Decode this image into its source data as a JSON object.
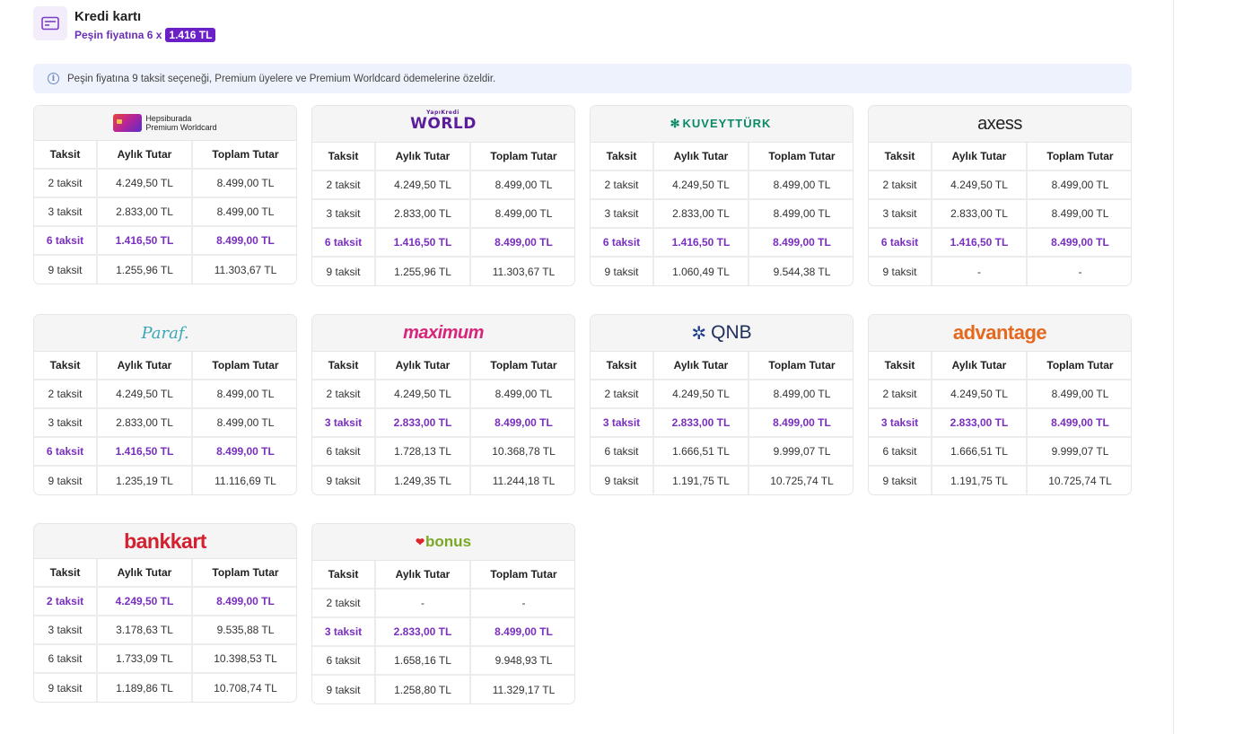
{
  "header": {
    "icon": "credit-card-icon",
    "title": "Kredi kartı",
    "subtitle_prefix": "Peşin fiyatına 6 x",
    "price": "1.416 TL"
  },
  "notice": {
    "icon": "info-icon",
    "text": "Peşin fiyatına 9 taksit seçeneği, Premium üyelere ve Premium Worldcard ödemelerine özeldir."
  },
  "columns": [
    "Taksit",
    "Aylık Tutar",
    "Toplam Tutar"
  ],
  "banks": [
    {
      "logo_line1": "Hepsiburada",
      "logo_line2": "Premium Worldcard",
      "rows": [
        {
          "t": "2 taksit",
          "m": "4.249,50 TL",
          "total": "8.499,00 TL",
          "hl": false
        },
        {
          "t": "3 taksit",
          "m": "2.833,00 TL",
          "total": "8.499,00 TL",
          "hl": false
        },
        {
          "t": "6 taksit",
          "m": "1.416,50 TL",
          "total": "8.499,00 TL",
          "hl": true
        },
        {
          "t": "9 taksit",
          "m": "1.255,96 TL",
          "total": "11.303,67 TL",
          "hl": false
        }
      ]
    },
    {
      "logo_top": "YapıKredi",
      "logo_text": "WORLD",
      "rows": [
        {
          "t": "2 taksit",
          "m": "4.249,50 TL",
          "total": "8.499,00 TL",
          "hl": false
        },
        {
          "t": "3 taksit",
          "m": "2.833,00 TL",
          "total": "8.499,00 TL",
          "hl": false
        },
        {
          "t": "6 taksit",
          "m": "1.416,50 TL",
          "total": "8.499,00 TL",
          "hl": true
        },
        {
          "t": "9 taksit",
          "m": "1.255,96 TL",
          "total": "11.303,67 TL",
          "hl": false
        }
      ]
    },
    {
      "logo_text": "KUVEYTTÜRK",
      "rows": [
        {
          "t": "2 taksit",
          "m": "4.249,50 TL",
          "total": "8.499,00 TL",
          "hl": false
        },
        {
          "t": "3 taksit",
          "m": "2.833,00 TL",
          "total": "8.499,00 TL",
          "hl": false
        },
        {
          "t": "6 taksit",
          "m": "1.416,50 TL",
          "total": "8.499,00 TL",
          "hl": true
        },
        {
          "t": "9 taksit",
          "m": "1.060,49 TL",
          "total": "9.544,38 TL",
          "hl": false
        }
      ]
    },
    {
      "logo_text": "axess",
      "rows": [
        {
          "t": "2 taksit",
          "m": "4.249,50 TL",
          "total": "8.499,00 TL",
          "hl": false
        },
        {
          "t": "3 taksit",
          "m": "2.833,00 TL",
          "total": "8.499,00 TL",
          "hl": false
        },
        {
          "t": "6 taksit",
          "m": "1.416,50 TL",
          "total": "8.499,00 TL",
          "hl": true
        },
        {
          "t": "9 taksit",
          "m": "-",
          "total": "-",
          "hl": false
        }
      ]
    },
    {
      "logo_text": "Paraf.",
      "rows": [
        {
          "t": "2 taksit",
          "m": "4.249,50 TL",
          "total": "8.499,00 TL",
          "hl": false
        },
        {
          "t": "3 taksit",
          "m": "2.833,00 TL",
          "total": "8.499,00 TL",
          "hl": false
        },
        {
          "t": "6 taksit",
          "m": "1.416,50 TL",
          "total": "8.499,00 TL",
          "hl": true
        },
        {
          "t": "9 taksit",
          "m": "1.235,19 TL",
          "total": "11.116,69 TL",
          "hl": false
        }
      ]
    },
    {
      "logo_text": "maximum",
      "rows": [
        {
          "t": "2 taksit",
          "m": "4.249,50 TL",
          "total": "8.499,00 TL",
          "hl": false
        },
        {
          "t": "3 taksit",
          "m": "2.833,00 TL",
          "total": "8.499,00 TL",
          "hl": true
        },
        {
          "t": "6 taksit",
          "m": "1.728,13 TL",
          "total": "10.368,78 TL",
          "hl": false
        },
        {
          "t": "9 taksit",
          "m": "1.249,35 TL",
          "total": "11.244,18 TL",
          "hl": false
        }
      ]
    },
    {
      "logo_text": "QNB",
      "rows": [
        {
          "t": "2 taksit",
          "m": "4.249,50 TL",
          "total": "8.499,00 TL",
          "hl": false
        },
        {
          "t": "3 taksit",
          "m": "2.833,00 TL",
          "total": "8.499,00 TL",
          "hl": true
        },
        {
          "t": "6 taksit",
          "m": "1.666,51 TL",
          "total": "9.999,07 TL",
          "hl": false
        },
        {
          "t": "9 taksit",
          "m": "1.191,75 TL",
          "total": "10.725,74 TL",
          "hl": false
        }
      ]
    },
    {
      "logo_text": "advantage",
      "rows": [
        {
          "t": "2 taksit",
          "m": "4.249,50 TL",
          "total": "8.499,00 TL",
          "hl": false
        },
        {
          "t": "3 taksit",
          "m": "2.833,00 TL",
          "total": "8.499,00 TL",
          "hl": true
        },
        {
          "t": "6 taksit",
          "m": "1.666,51 TL",
          "total": "9.999,07 TL",
          "hl": false
        },
        {
          "t": "9 taksit",
          "m": "1.191,75 TL",
          "total": "10.725,74 TL",
          "hl": false
        }
      ]
    },
    {
      "logo_text": "bankkart",
      "rows": [
        {
          "t": "2 taksit",
          "m": "4.249,50 TL",
          "total": "8.499,00 TL",
          "hl": true
        },
        {
          "t": "3 taksit",
          "m": "3.178,63 TL",
          "total": "9.535,88 TL",
          "hl": false
        },
        {
          "t": "6 taksit",
          "m": "1.733,09 TL",
          "total": "10.398,53 TL",
          "hl": false
        },
        {
          "t": "9 taksit",
          "m": "1.189,86 TL",
          "total": "10.708,74 TL",
          "hl": false
        }
      ]
    },
    {
      "logo_text": "bonus",
      "rows": [
        {
          "t": "2 taksit",
          "m": "-",
          "total": "-",
          "hl": false
        },
        {
          "t": "3 taksit",
          "m": "2.833,00 TL",
          "total": "8.499,00 TL",
          "hl": true
        },
        {
          "t": "6 taksit",
          "m": "1.658,16 TL",
          "total": "9.948,93 TL",
          "hl": false
        },
        {
          "t": "9 taksit",
          "m": "1.258,80 TL",
          "total": "11.329,17 TL",
          "hl": false
        }
      ]
    }
  ]
}
